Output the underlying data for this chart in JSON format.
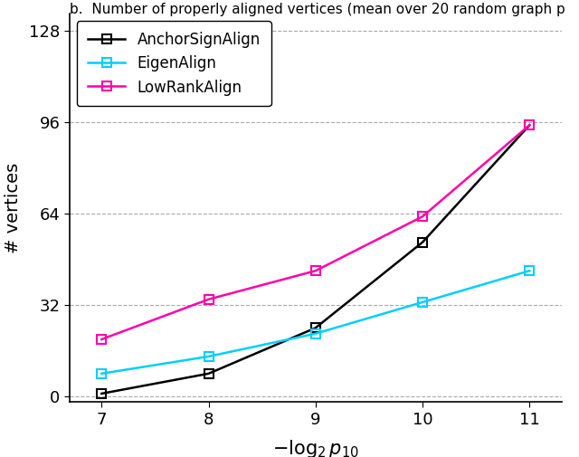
{
  "x": [
    7,
    8,
    9,
    10,
    11
  ],
  "anchor_sign_align": [
    1,
    8,
    24,
    54,
    95
  ],
  "eigen_align": [
    8,
    14,
    22,
    33,
    44
  ],
  "low_rank_align": [
    20,
    34,
    44,
    63,
    95
  ],
  "anchor_color": "#000000",
  "eigen_color": "#00CFFF",
  "lowrank_color": "#FF00AA",
  "xlabel": "$-\\log_2 p_{10}$",
  "ylabel": "# vertices",
  "title": "b.  Number of properly aligned vertices (mean over 20 random graph p",
  "yticks": [
    0,
    32,
    64,
    96,
    128
  ],
  "xticks": [
    7,
    8,
    9,
    10,
    11
  ],
  "ylim": [
    -2,
    134
  ],
  "xlim": [
    6.7,
    11.3
  ],
  "legend_labels": [
    "AnchorSignAlign",
    "EigenAlign",
    "LowRankAlign"
  ],
  "marker": "s",
  "markersize": 7,
  "linewidth": 1.8,
  "grid_color": "#aaaaaa",
  "bg_color": "#ffffff"
}
